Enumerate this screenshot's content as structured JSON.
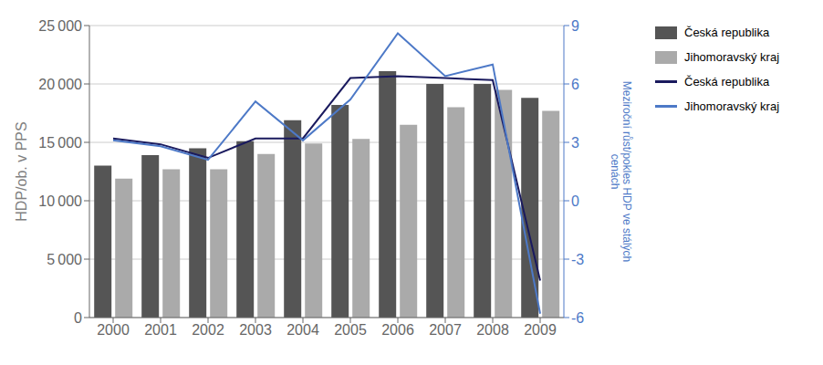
{
  "chart_data": {
    "type": "bar",
    "categories": [
      "2000",
      "2001",
      "2002",
      "2003",
      "2004",
      "2005",
      "2006",
      "2007",
      "2008",
      "2009"
    ],
    "series": [
      {
        "name": "Česká republika",
        "type": "bar",
        "color": "#555555",
        "values": [
          13000,
          13900,
          14500,
          15100,
          16900,
          18200,
          21100,
          20000,
          20000,
          18800
        ]
      },
      {
        "name": "Jihomoravský kraj",
        "type": "bar",
        "color": "#aaaaaa",
        "values": [
          11900,
          12700,
          12700,
          14000,
          14900,
          15300,
          16500,
          18000,
          19500,
          17700
        ]
      },
      {
        "name": "Česká republika",
        "type": "line",
        "axis": "y2",
        "color": "#1a1a5e",
        "values": [
          3.2,
          2.9,
          2.2,
          3.2,
          3.2,
          6.3,
          6.4,
          6.3,
          6.2,
          -4.1
        ]
      },
      {
        "name": "Jihomoravský kraj",
        "type": "line",
        "axis": "y2",
        "color": "#4d79c7",
        "values": [
          3.1,
          2.8,
          2.1,
          5.1,
          3.1,
          5.2,
          8.6,
          6.4,
          7.0,
          -5.8
        ]
      }
    ],
    "ylabel": "HDP/ob. v PPS",
    "y2label": "Meziroční růst/pokles HDP ve stálých\ncenách",
    "ylim": [
      0,
      25000
    ],
    "yticks": [
      0,
      {
        "value": 5000,
        "label": "5 000"
      },
      {
        "value": 10000,
        "label": "10 000"
      },
      {
        "value": 15000,
        "label": "15 000"
      },
      {
        "value": 20000,
        "label": "20 000"
      },
      {
        "value": 25000,
        "label": "25 000"
      }
    ],
    "y2lim": [
      -6,
      9
    ],
    "y2ticks": [
      -6,
      -3,
      0,
      3,
      6,
      9
    ],
    "grid": true,
    "legend": "right"
  }
}
